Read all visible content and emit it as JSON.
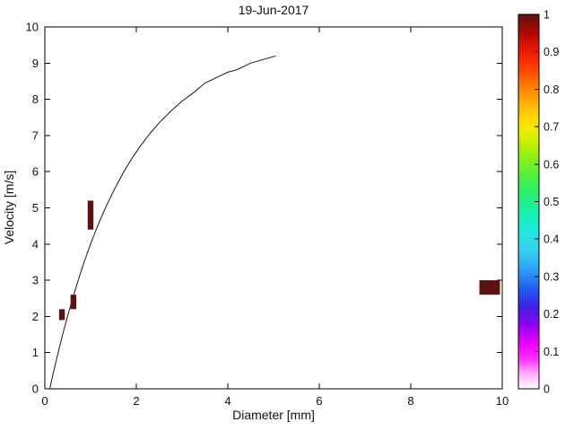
{
  "chart_data": {
    "type": "scatter",
    "title": "19-Jun-2017",
    "xlabel": "Diameter [mm]",
    "ylabel": "Velocity [m/s]",
    "xlim": [
      0,
      10
    ],
    "ylim": [
      0,
      10
    ],
    "xticks": [
      0,
      2,
      4,
      6,
      8,
      10
    ],
    "xtick_labels": [
      "0",
      "2",
      "4",
      "6",
      "8",
      "10"
    ],
    "yticks": [
      0,
      1,
      2,
      3,
      4,
      5,
      6,
      7,
      8,
      9,
      10
    ],
    "ytick_labels": [
      "0",
      "1",
      "2",
      "3",
      "4",
      "5",
      "6",
      "7",
      "8",
      "9",
      "10"
    ],
    "grid": false,
    "curve": {
      "name": "raindrop-terminal-velocity-curve",
      "points": [
        [
          0.11,
          0.0
        ],
        [
          0.15,
          0.24
        ],
        [
          0.2,
          0.52
        ],
        [
          0.25,
          0.79
        ],
        [
          0.3,
          1.05
        ],
        [
          0.4,
          1.55
        ],
        [
          0.5,
          2.02
        ],
        [
          0.6,
          2.47
        ],
        [
          0.7,
          2.88
        ],
        [
          0.8,
          3.28
        ],
        [
          0.9,
          3.65
        ],
        [
          1.0,
          4.0
        ],
        [
          1.1,
          4.33
        ],
        [
          1.2,
          4.64
        ],
        [
          1.35,
          5.07
        ],
        [
          1.5,
          5.46
        ],
        [
          1.7,
          5.94
        ],
        [
          1.9,
          6.36
        ],
        [
          2.1,
          6.73
        ],
        [
          2.3,
          7.06
        ],
        [
          2.5,
          7.35
        ],
        [
          2.75,
          7.67
        ],
        [
          3.0,
          7.95
        ],
        [
          3.25,
          8.18
        ],
        [
          3.5,
          8.45
        ],
        [
          3.75,
          8.6
        ],
        [
          4.0,
          8.75
        ],
        [
          4.2,
          8.82
        ],
        [
          4.5,
          9.0
        ],
        [
          5.05,
          9.2
        ]
      ]
    },
    "patches": [
      {
        "d_min": 0.312,
        "d_max": 0.437,
        "v_min": 1.9,
        "v_max": 2.2,
        "value": 1
      },
      {
        "d_min": 0.562,
        "d_max": 0.687,
        "v_min": 2.2,
        "v_max": 2.6,
        "value": 1
      },
      {
        "d_min": 0.937,
        "d_max": 1.062,
        "v_min": 4.4,
        "v_max": 5.2,
        "value": 1
      },
      {
        "d_min": 9.5,
        "d_max": 9.95,
        "v_min": 2.6,
        "v_max": 3.0,
        "value": 1
      }
    ],
    "patch_color": "#5e1111",
    "colorbar": {
      "position": "right",
      "min": 0,
      "max": 1,
      "ticks": [
        0,
        0.1,
        0.2,
        0.3,
        0.4,
        0.5,
        0.6,
        0.7,
        0.8,
        0.9,
        1
      ],
      "tick_labels": [
        "0",
        "0.1",
        "0.2",
        "0.3",
        "0.4",
        "0.5",
        "0.6",
        "0.7",
        "0.8",
        "0.9",
        "1"
      ],
      "gradient": [
        {
          "offset": 0.0,
          "color": "#ffffff"
        },
        {
          "offset": 0.04,
          "color": "#ffb0ff"
        },
        {
          "offset": 0.08,
          "color": "#ff30ff"
        },
        {
          "offset": 0.12,
          "color": "#f000ff"
        },
        {
          "offset": 0.17,
          "color": "#9000f0"
        },
        {
          "offset": 0.22,
          "color": "#4020e8"
        },
        {
          "offset": 0.27,
          "color": "#2060f0"
        },
        {
          "offset": 0.32,
          "color": "#30a0f8"
        },
        {
          "offset": 0.37,
          "color": "#38d0f0"
        },
        {
          "offset": 0.42,
          "color": "#20e8e0"
        },
        {
          "offset": 0.47,
          "color": "#18f0b0"
        },
        {
          "offset": 0.52,
          "color": "#28f070"
        },
        {
          "offset": 0.57,
          "color": "#50f040"
        },
        {
          "offset": 0.62,
          "color": "#90f018"
        },
        {
          "offset": 0.66,
          "color": "#c8f000"
        },
        {
          "offset": 0.7,
          "color": "#f8e800"
        },
        {
          "offset": 0.75,
          "color": "#ffc000"
        },
        {
          "offset": 0.8,
          "color": "#ff8800"
        },
        {
          "offset": 0.85,
          "color": "#ff4800"
        },
        {
          "offset": 0.9,
          "color": "#f01800"
        },
        {
          "offset": 0.95,
          "color": "#b00800"
        },
        {
          "offset": 1.0,
          "color": "#5e1111"
        }
      ]
    },
    "axis_color": "#000000",
    "curve_color": "#1a1a1a"
  }
}
